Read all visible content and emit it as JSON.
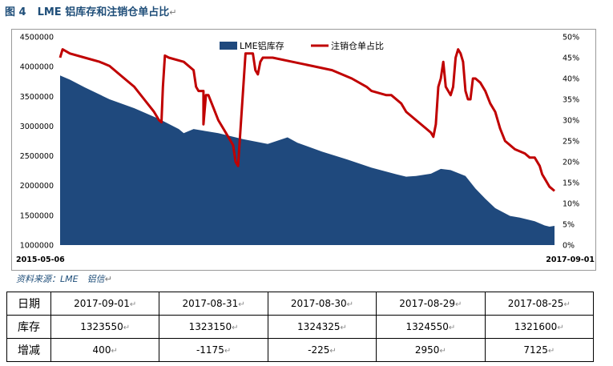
{
  "title": {
    "figure": "图 4",
    "text": "LME 铝库存和注销仓单占比",
    "mark": "↵"
  },
  "source": {
    "text": "资料来源：LME　铝信",
    "mark": "↵"
  },
  "chart_data": {
    "type": "area+line",
    "x_start": "2015-05-06",
    "x_end": "2017-09-01",
    "left_axis": {
      "min": 1000000,
      "max": 4500000,
      "ticks": [
        "1000000",
        "1500000",
        "2000000",
        "2500000",
        "3000000",
        "3500000",
        "4000000",
        "4500000"
      ]
    },
    "right_axis": {
      "min": 0,
      "max": 50,
      "ticks": [
        "0%",
        "5%",
        "10%",
        "15%",
        "20%",
        "25%",
        "30%",
        "35%",
        "40%",
        "45%",
        "50%"
      ]
    },
    "legend": {
      "position": "top",
      "labels": [
        "LME铝库存",
        "注销仓单占比"
      ]
    },
    "series": [
      {
        "name": "LME铝库存",
        "kind": "area",
        "color": "#1f497d",
        "axis": "left",
        "points": [
          [
            0,
            3850000
          ],
          [
            0.02,
            3780000
          ],
          [
            0.05,
            3650000
          ],
          [
            0.1,
            3450000
          ],
          [
            0.15,
            3300000
          ],
          [
            0.2,
            3120000
          ],
          [
            0.24,
            2950000
          ],
          [
            0.25,
            2880000
          ],
          [
            0.27,
            2950000
          ],
          [
            0.32,
            2880000
          ],
          [
            0.37,
            2780000
          ],
          [
            0.42,
            2700000
          ],
          [
            0.46,
            2810000
          ],
          [
            0.48,
            2720000
          ],
          [
            0.53,
            2570000
          ],
          [
            0.58,
            2440000
          ],
          [
            0.63,
            2300000
          ],
          [
            0.68,
            2190000
          ],
          [
            0.7,
            2150000
          ],
          [
            0.72,
            2160000
          ],
          [
            0.75,
            2200000
          ],
          [
            0.77,
            2280000
          ],
          [
            0.79,
            2260000
          ],
          [
            0.82,
            2160000
          ],
          [
            0.84,
            1950000
          ],
          [
            0.86,
            1780000
          ],
          [
            0.88,
            1620000
          ],
          [
            0.91,
            1490000
          ],
          [
            0.93,
            1460000
          ],
          [
            0.96,
            1400000
          ],
          [
            0.98,
            1330000
          ],
          [
            0.99,
            1310000
          ],
          [
            1.0,
            1323550
          ]
        ]
      },
      {
        "name": "注销仓单占比",
        "kind": "line",
        "color": "#c00000",
        "axis": "right",
        "points": [
          [
            0,
            45
          ],
          [
            0.005,
            47
          ],
          [
            0.02,
            46
          ],
          [
            0.05,
            45
          ],
          [
            0.08,
            44
          ],
          [
            0.1,
            43
          ],
          [
            0.13,
            40
          ],
          [
            0.15,
            38
          ],
          [
            0.17,
            35
          ],
          [
            0.19,
            32
          ],
          [
            0.2,
            30
          ],
          [
            0.205,
            29.5
          ],
          [
            0.208,
            38
          ],
          [
            0.212,
            45.5
          ],
          [
            0.22,
            45
          ],
          [
            0.25,
            44
          ],
          [
            0.27,
            42
          ],
          [
            0.275,
            38
          ],
          [
            0.28,
            37
          ],
          [
            0.29,
            37
          ],
          [
            0.29,
            29
          ],
          [
            0.295,
            36
          ],
          [
            0.3,
            36
          ],
          [
            0.31,
            33
          ],
          [
            0.32,
            30
          ],
          [
            0.33,
            28
          ],
          [
            0.34,
            26
          ],
          [
            0.35,
            24
          ],
          [
            0.355,
            20
          ],
          [
            0.36,
            19
          ],
          [
            0.365,
            28
          ],
          [
            0.37,
            37
          ],
          [
            0.375,
            46
          ],
          [
            0.39,
            46
          ],
          [
            0.395,
            42
          ],
          [
            0.4,
            41
          ],
          [
            0.405,
            44
          ],
          [
            0.41,
            45
          ],
          [
            0.43,
            45
          ],
          [
            0.47,
            44
          ],
          [
            0.51,
            43
          ],
          [
            0.55,
            42
          ],
          [
            0.59,
            40
          ],
          [
            0.62,
            38
          ],
          [
            0.63,
            37
          ],
          [
            0.66,
            36
          ],
          [
            0.67,
            36
          ],
          [
            0.69,
            34
          ],
          [
            0.7,
            32
          ],
          [
            0.72,
            30
          ],
          [
            0.74,
            28
          ],
          [
            0.75,
            27
          ],
          [
            0.755,
            26
          ],
          [
            0.76,
            29
          ],
          [
            0.765,
            38
          ],
          [
            0.77,
            40
          ],
          [
            0.775,
            44
          ],
          [
            0.78,
            38
          ],
          [
            0.79,
            36
          ],
          [
            0.795,
            38
          ],
          [
            0.8,
            45
          ],
          [
            0.805,
            47
          ],
          [
            0.81,
            46
          ],
          [
            0.815,
            44
          ],
          [
            0.82,
            37
          ],
          [
            0.825,
            35
          ],
          [
            0.83,
            35
          ],
          [
            0.835,
            40
          ],
          [
            0.84,
            40
          ],
          [
            0.85,
            39
          ],
          [
            0.86,
            37
          ],
          [
            0.87,
            34
          ],
          [
            0.88,
            32
          ],
          [
            0.89,
            28
          ],
          [
            0.9,
            25
          ],
          [
            0.92,
            23
          ],
          [
            0.94,
            22
          ],
          [
            0.95,
            21
          ],
          [
            0.96,
            21
          ],
          [
            0.97,
            19
          ],
          [
            0.975,
            17
          ],
          [
            0.98,
            16
          ],
          [
            0.99,
            14
          ],
          [
            1.0,
            13
          ]
        ]
      }
    ]
  },
  "table": {
    "rows": [
      {
        "head": "日期",
        "cells": [
          "2017-09-01",
          "2017-08-31",
          "2017-08-30",
          "2017-08-29",
          "2017-08-25"
        ]
      },
      {
        "head": "库存",
        "cells": [
          "1323550",
          "1323150",
          "1324325",
          "1324550",
          "1321600"
        ]
      },
      {
        "head": "增减",
        "cells": [
          "400",
          "-1175",
          "-225",
          "2950",
          "7125"
        ]
      }
    ],
    "mark": "↵"
  }
}
